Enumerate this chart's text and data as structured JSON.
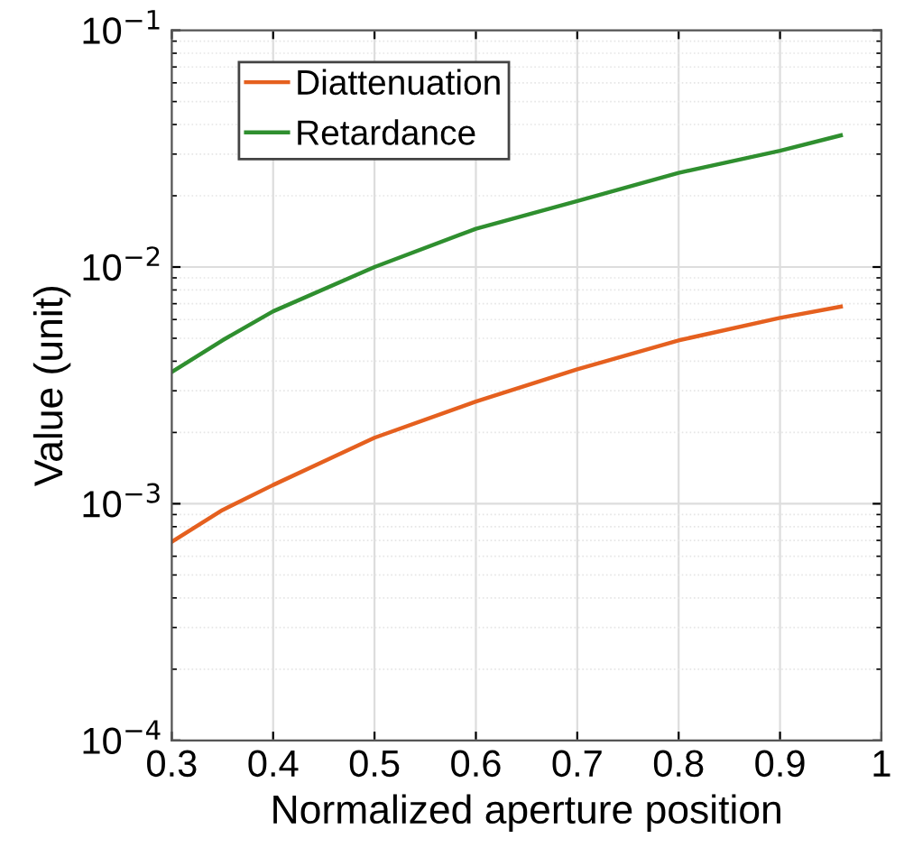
{
  "chart_data": {
    "type": "line",
    "xlabel": "Normalized aperture position",
    "ylabel": "Value (unit)",
    "log": "y",
    "grid": true,
    "legend": "top left",
    "x": [
      0.3,
      0.35,
      0.4,
      0.5,
      0.6,
      0.7,
      0.8,
      0.9,
      0.96
    ],
    "series": [
      {
        "name": "Diattenuation",
        "color": "#e5601f",
        "values": [
          0.00069,
          0.00094,
          0.0012,
          0.0019,
          0.0027,
          0.0037,
          0.0049,
          0.0061,
          0.0068
        ]
      },
      {
        "name": "Retardance",
        "color": "#2f8f2f",
        "values": [
          0.0036,
          0.0049,
          0.0065,
          0.01,
          0.0145,
          0.019,
          0.025,
          0.031,
          0.036
        ]
      }
    ],
    "xlim": [
      0.3,
      1
    ],
    "xticks": [
      0.3,
      0.4,
      0.5,
      0.6,
      0.7,
      0.8,
      0.9,
      1
    ],
    "ylim": [
      0.0001,
      0.1
    ],
    "yticks": [
      {
        "value": 0.0001,
        "label": "10$^{−4}$"
      },
      {
        "value": 0.001,
        "label": "10$^{−3}$"
      },
      {
        "value": 0.01,
        "label": "10$^{−2}$"
      },
      {
        "value": 0.1,
        "label": "10$^{−1}$"
      }
    ]
  }
}
